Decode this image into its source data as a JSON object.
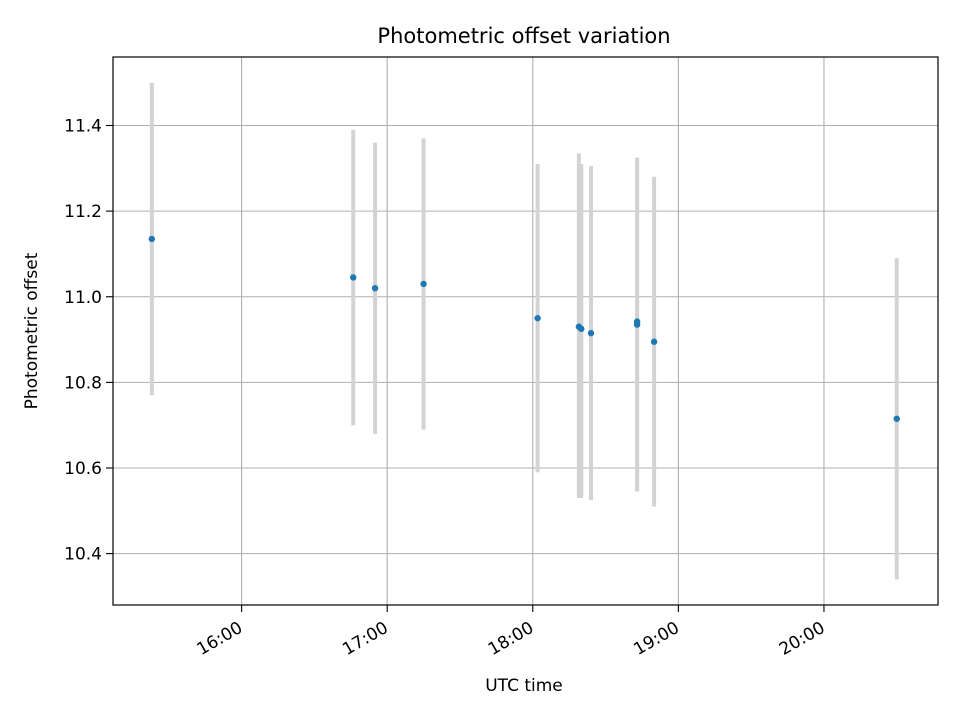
{
  "chart_data": {
    "type": "scatter",
    "title": "Photometric offset variation",
    "xlabel": "UTC time",
    "ylabel": "Photometric offset",
    "xlim": [
      "15:07",
      "20:47"
    ],
    "ylim": [
      10.28,
      11.56
    ],
    "grid": true,
    "x_ticks": [
      "16:00",
      "17:00",
      "18:00",
      "19:00",
      "20:00"
    ],
    "y_ticks": [
      "10.4",
      "10.6",
      "10.8",
      "11.0",
      "11.2",
      "11.4"
    ],
    "point_color": "#1f77b4",
    "errorbar_color": "#d3d3d3",
    "points": [
      {
        "time": "15:23",
        "value": 11.135,
        "low": 10.77,
        "high": 11.5
      },
      {
        "time": "16:46",
        "value": 11.045,
        "low": 10.7,
        "high": 11.39
      },
      {
        "time": "16:55",
        "value": 11.02,
        "low": 10.68,
        "high": 11.36
      },
      {
        "time": "17:15",
        "value": 11.03,
        "low": 10.69,
        "high": 11.37
      },
      {
        "time": "18:02",
        "value": 10.95,
        "low": 10.59,
        "high": 11.31
      },
      {
        "time": "18:19",
        "value": 10.93,
        "low": 10.53,
        "high": 11.335
      },
      {
        "time": "18:20",
        "value": 10.925,
        "low": 10.53,
        "high": 11.31
      },
      {
        "time": "18:24",
        "value": 10.915,
        "low": 10.525,
        "high": 11.305
      },
      {
        "time": "18:43",
        "value": 10.942,
        "low": 10.545,
        "high": 11.325
      },
      {
        "time": "18:43",
        "value": 10.935,
        "low": 10.545,
        "high": 11.325
      },
      {
        "time": "18:50",
        "value": 10.895,
        "low": 10.51,
        "high": 11.28
      },
      {
        "time": "20:30",
        "value": 10.715,
        "low": 10.34,
        "high": 11.09
      }
    ]
  }
}
